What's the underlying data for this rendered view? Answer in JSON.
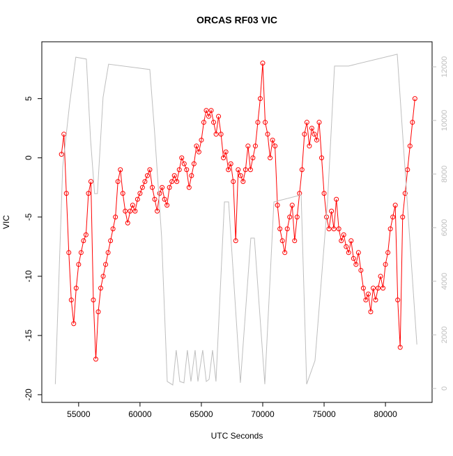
{
  "chart_data": {
    "type": "line",
    "title": "ORCAS RF03 VIC",
    "xlabel": "UTC Seconds",
    "ylabel": "VIC",
    "xlim": [
      52000,
      83800
    ],
    "ylim": [
      -20.65,
      9.8
    ],
    "y2lim": [
      -520,
      12935
    ],
    "xticks": [
      55000,
      60000,
      65000,
      70000,
      75000,
      80000
    ],
    "yticks": [
      -20,
      -15,
      -10,
      -5,
      0,
      5
    ],
    "y2ticks": [
      0,
      2000,
      4000,
      6000,
      8000,
      10000,
      12000
    ],
    "series": [
      {
        "color": "#ff0000",
        "markers": true,
        "x": [
          53600,
          53800,
          54000,
          54200,
          54400,
          54600,
          54800,
          55000,
          55200,
          55400,
          55600,
          55800,
          56000,
          56200,
          56400,
          56600,
          56800,
          57000,
          57200,
          57400,
          57600,
          57800,
          58000,
          58200,
          58400,
          58600,
          58800,
          59000,
          59200,
          59400,
          59600,
          59800,
          60000,
          60200,
          60400,
          60600,
          60800,
          61000,
          61200,
          61400,
          61600,
          61800,
          62000,
          62200,
          62400,
          62600,
          62800,
          63000,
          63200,
          63400,
          63600,
          63800,
          64000,
          64200,
          64400,
          64600,
          64800,
          65000,
          65200,
          65400,
          65600,
          65800,
          66000,
          66200,
          66400,
          66600,
          66800,
          67000,
          67200,
          67400,
          67600,
          67800,
          68000,
          68200,
          68400,
          68600,
          68800,
          69000,
          69200,
          69400,
          69600,
          69800,
          70000,
          70200,
          70400,
          70600,
          70800,
          71000,
          71200,
          71400,
          71600,
          71800,
          72000,
          72200,
          72400,
          72600,
          72800,
          73000,
          73200,
          73400,
          73600,
          73800,
          74000,
          74200,
          74400,
          74600,
          74800,
          75000,
          75200,
          75400,
          75600,
          75800,
          76000,
          76200,
          76400,
          76600,
          76800,
          77000,
          77200,
          77400,
          77600,
          77800,
          78000,
          78200,
          78400,
          78600,
          78800,
          79000,
          79200,
          79400,
          79600,
          79800,
          80000,
          80200,
          80400,
          80600,
          80800,
          81000,
          81200,
          81400,
          81600,
          81800,
          82000,
          82200,
          82400
        ],
        "values": [
          0.3,
          2,
          -3,
          -8,
          -12,
          -14,
          -11,
          -9,
          -8,
          -7,
          -6.5,
          -3,
          -2,
          -12,
          -17,
          -13,
          -11,
          -10,
          -9,
          -8,
          -7,
          -6,
          -5,
          -2,
          -1,
          -3,
          -4.5,
          -5.5,
          -4.5,
          -4,
          -4.5,
          -3.5,
          -3,
          -2.5,
          -2,
          -1.5,
          -1,
          -2.5,
          -3.5,
          -4.5,
          -3,
          -2.5,
          -3.5,
          -4,
          -2.5,
          -2,
          -1.5,
          -2,
          -1,
          0,
          -0.5,
          -1,
          -2.5,
          -1.5,
          -0.5,
          1,
          0.5,
          1.5,
          3,
          4,
          3.5,
          4,
          3,
          2,
          3.5,
          2,
          0,
          0.5,
          -1,
          -0.5,
          -2,
          -7,
          -1,
          -1.5,
          -2,
          -1,
          1,
          -1,
          0,
          1,
          3,
          5,
          8,
          3,
          2,
          0,
          1.5,
          1,
          -4,
          -6,
          -7,
          -8,
          -6,
          -5,
          -4,
          -7,
          -5,
          -3,
          -1,
          2,
          3,
          1,
          2.5,
          2,
          1.5,
          3,
          0,
          -3,
          -5,
          -6,
          -4.5,
          -6,
          -3.5,
          -6,
          -7,
          -6.5,
          -7.5,
          -8,
          -7,
          -8.5,
          -9,
          -8,
          -9.5,
          -11,
          -12,
          -11.5,
          -13,
          -11,
          -12,
          -11,
          -10,
          -11,
          -9,
          -8,
          -6,
          -5,
          -4,
          -12,
          -16,
          -5,
          -3,
          -1,
          1,
          3,
          5
        ]
      },
      {
        "color": "#bebebe",
        "axis": "y2",
        "markers": false,
        "x": [
          53100,
          53700,
          54260,
          54770,
          55630,
          55970,
          56300,
          56530,
          56990,
          57440,
          59940,
          60800,
          61190,
          61760,
          62220,
          62670,
          62950,
          63240,
          63580,
          63860,
          64150,
          64490,
          64720,
          65110,
          65400,
          65630,
          65910,
          66190,
          66880,
          67220,
          68180,
          69030,
          69320,
          70170,
          70910,
          73130,
          73580,
          74260,
          75280,
          75850,
          76990,
          80960,
          82560
        ],
        "values": [
          160,
          8260,
          10600,
          12360,
          12290,
          9300,
          7270,
          7270,
          10860,
          12100,
          11950,
          11900,
          9560,
          5660,
          260,
          130,
          1430,
          260,
          210,
          1430,
          260,
          1430,
          260,
          1430,
          260,
          340,
          1430,
          260,
          6960,
          6960,
          210,
          5610,
          5610,
          160,
          6960,
          7220,
          160,
          1040,
          6960,
          12030,
          12030,
          12470,
          1640
        ]
      }
    ]
  }
}
